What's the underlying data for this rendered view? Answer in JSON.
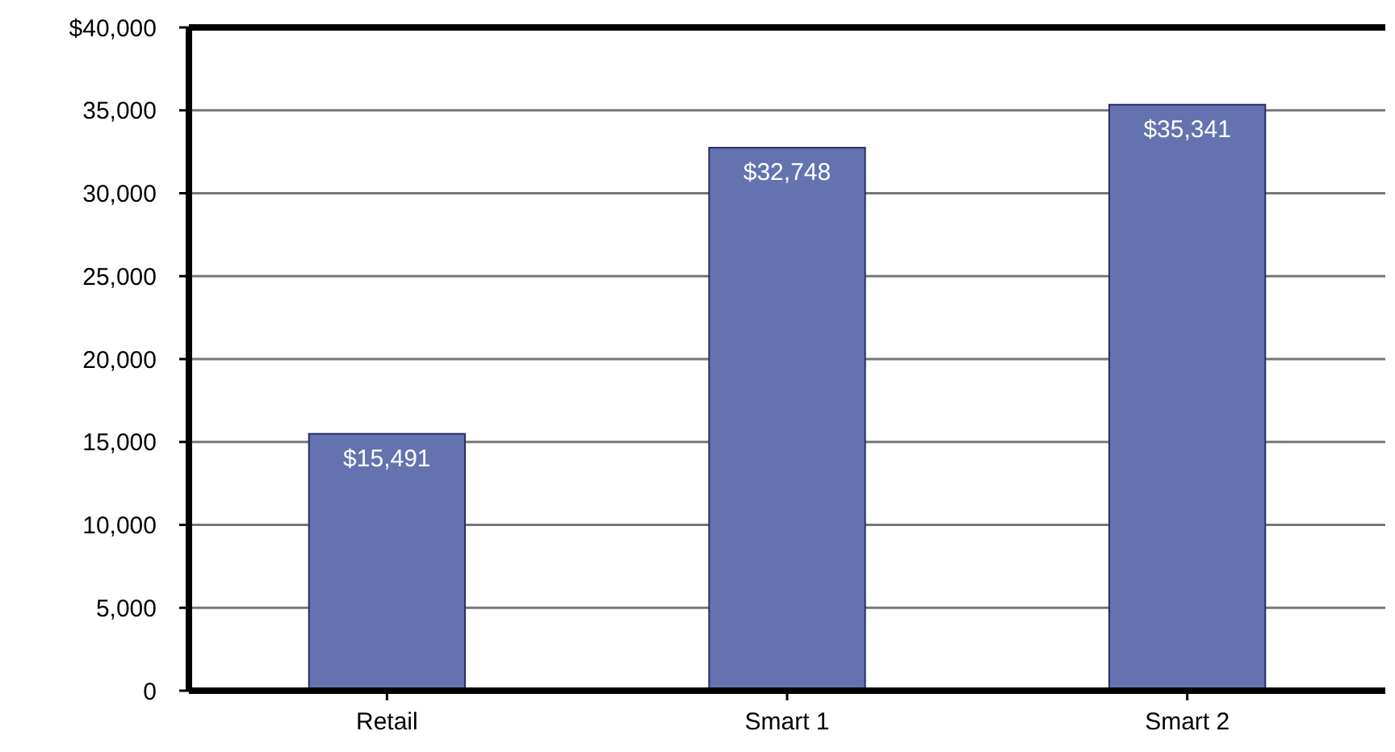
{
  "chart_data": {
    "type": "bar",
    "categories": [
      "Retail",
      "Smart 1",
      "Smart 2"
    ],
    "values": [
      15491,
      32748,
      35341
    ],
    "color": "#6472b0",
    "value_labels": [
      "$15,491",
      "$32,748",
      "$35,341"
    ],
    "ylim": [
      0,
      40000
    ],
    "yticks": [
      0,
      {
        "value": 5000,
        "label": "5,000"
      },
      {
        "value": 10000,
        "label": "10,000"
      },
      {
        "value": 15000,
        "label": "15,000"
      },
      {
        "value": 20000,
        "label": "20,000"
      },
      {
        "value": 25000,
        "label": "25,000"
      },
      {
        "value": 30000,
        "label": "30,000"
      },
      {
        "value": 35000,
        "label": "35,000"
      },
      {
        "value": 40000,
        "label": "$40,000"
      }
    ],
    "grid": "y"
  }
}
